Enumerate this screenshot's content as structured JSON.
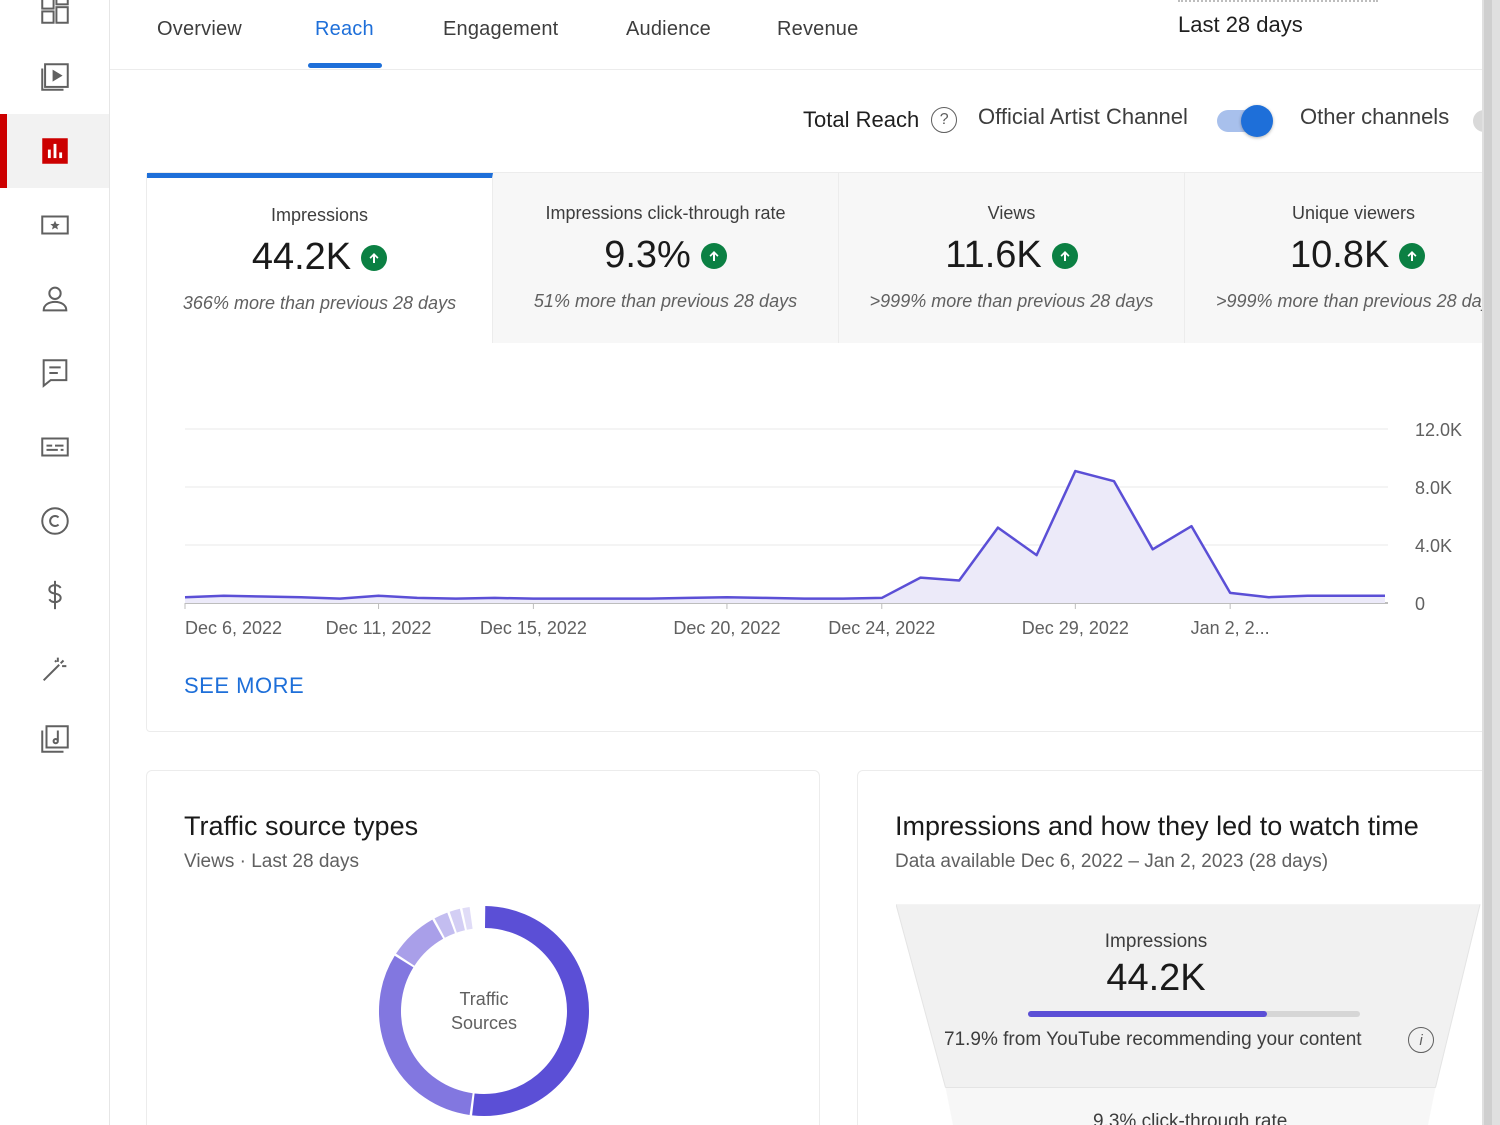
{
  "tabs": [
    {
      "label": "Overview"
    },
    {
      "label": "Reach"
    },
    {
      "label": "Engagement"
    },
    {
      "label": "Audience"
    },
    {
      "label": "Revenue"
    }
  ],
  "active_tab": "Reach",
  "date_range": "Last 28 days",
  "reach_toggle": {
    "total_reach_label": "Total Reach",
    "help_icon_glyph": "?",
    "official_label": "Official Artist Channel",
    "other_label": "Other channels",
    "official_on": true
  },
  "metrics": [
    {
      "label": "Impressions",
      "value": "44.2K",
      "note": "366% more than previous 28 days"
    },
    {
      "label": "Impressions click-through rate",
      "value": "9.3%",
      "note": "51% more than previous 28 days"
    },
    {
      "label": "Views",
      "value": "11.6K",
      "note": ">999% more than previous 28 days"
    },
    {
      "label": "Unique viewers",
      "value": "10.8K",
      "note": ">999% more than previous 28 days"
    }
  ],
  "chart_data": {
    "type": "area",
    "series": [
      {
        "values": [
          400,
          500,
          450,
          400,
          300,
          500,
          350,
          300,
          350,
          300,
          300,
          300,
          300,
          350,
          400,
          350,
          300,
          300,
          350,
          1750,
          1550,
          5200,
          3300,
          9100,
          8400,
          3700,
          5300,
          700,
          400,
          500,
          500,
          500
        ]
      }
    ],
    "x_tick_labels": [
      "Dec 6, 2022",
      "Dec 11, 2022",
      "Dec 15, 2022",
      "Dec 20, 2022",
      "Dec 24, 2022",
      "Dec 29, 2022",
      "Jan 2, 2..."
    ],
    "y_tick_labels": [
      "12.0K",
      "8.0K",
      "4.0K",
      "0"
    ],
    "y_ticks": [
      12000,
      8000,
      4000,
      0
    ],
    "ylim": [
      0,
      12000
    ],
    "grid": true,
    "color": "#5b4fd6",
    "fill": "#eceaf9"
  },
  "see_more": "SEE MORE",
  "traffic": {
    "title": "Traffic source types",
    "subtitle": "Views · Last 28 days",
    "center_line1": "Traffic",
    "center_line2": "Sources",
    "segments": [
      {
        "fraction": 0.52,
        "color": "#5b4fd6"
      },
      {
        "fraction": 0.32,
        "color": "#8277e0"
      },
      {
        "fraction": 0.08,
        "color": "#a99fe9"
      },
      {
        "fraction": 0.025,
        "color": "#c3bdf0"
      },
      {
        "fraction": 0.02,
        "color": "#d3cef4"
      },
      {
        "fraction": 0.015,
        "color": "#e0dcf7"
      }
    ]
  },
  "funnel": {
    "title": "Impressions and how they led to watch time",
    "subtitle": "Data available Dec 6, 2022 – Jan 2, 2023 (28 days)",
    "impressions_label": "Impressions",
    "impressions_value": "44.2K",
    "recommend_fraction": 0.719,
    "recommend_note": "71.9% from YouTube recommending your content",
    "info_glyph": "i",
    "ctr_note": "9.3% click-through rate"
  }
}
